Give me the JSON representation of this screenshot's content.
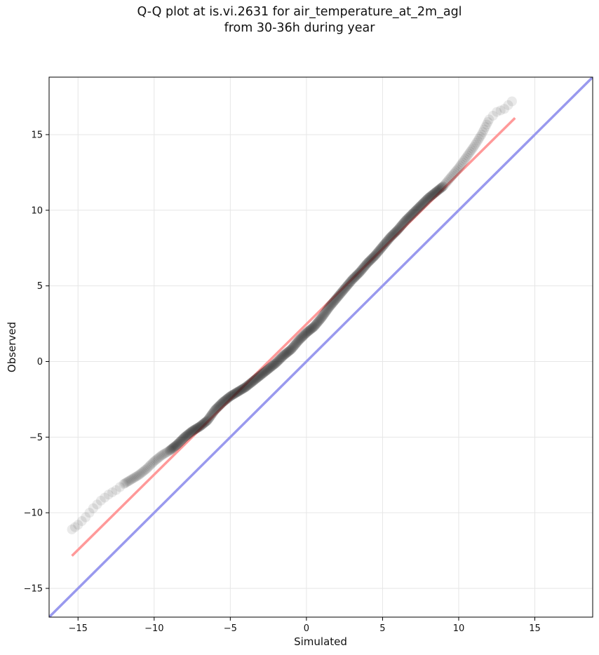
{
  "chart_data": {
    "type": "scatter",
    "title_line1": "Q-Q plot at is.vi.2631 for air_temperature_at_2m_agl",
    "title_line2": "from 30-36h during year",
    "xlabel": "Simulated",
    "ylabel": "Observed",
    "xlim": [
      -16.9,
      18.8
    ],
    "ylim": [
      -16.9,
      18.8
    ],
    "xticks": [
      -15,
      -10,
      -5,
      0,
      5,
      10,
      15
    ],
    "yticks": [
      -15,
      -10,
      -5,
      0,
      5,
      10,
      15
    ],
    "xtick_labels": [
      "−15",
      "−10",
      "−5",
      "0",
      "5",
      "10",
      "15"
    ],
    "ytick_labels": [
      "−15",
      "−10",
      "−5",
      "0",
      "5",
      "10",
      "15"
    ],
    "grid": true,
    "quantile_curve": [
      [
        -15.4,
        -11.1
      ],
      [
        -15.0,
        -10.8
      ],
      [
        -14.5,
        -10.3
      ],
      [
        -14.0,
        -9.7
      ],
      [
        -13.5,
        -9.2
      ],
      [
        -13.0,
        -8.8
      ],
      [
        -12.5,
        -8.5
      ],
      [
        -12.0,
        -8.1
      ],
      [
        -11.5,
        -7.8
      ],
      [
        -11.0,
        -7.5
      ],
      [
        -10.5,
        -7.1
      ],
      [
        -10.0,
        -6.6
      ],
      [
        -9.5,
        -6.2
      ],
      [
        -9.0,
        -5.9
      ],
      [
        -8.5,
        -5.5
      ],
      [
        -8.0,
        -5.0
      ],
      [
        -7.5,
        -4.6
      ],
      [
        -7.0,
        -4.3
      ],
      [
        -6.5,
        -3.9
      ],
      [
        -6.0,
        -3.2
      ],
      [
        -5.5,
        -2.7
      ],
      [
        -5.0,
        -2.3
      ],
      [
        -4.5,
        -2.0
      ],
      [
        -4.0,
        -1.7
      ],
      [
        -3.5,
        -1.3
      ],
      [
        -3.0,
        -0.9
      ],
      [
        -2.5,
        -0.5
      ],
      [
        -2.0,
        -0.1
      ],
      [
        -1.5,
        0.4
      ],
      [
        -1.0,
        0.8
      ],
      [
        -0.5,
        1.4
      ],
      [
        0.0,
        1.9
      ],
      [
        0.5,
        2.3
      ],
      [
        1.0,
        2.9
      ],
      [
        1.5,
        3.6
      ],
      [
        2.0,
        4.2
      ],
      [
        2.5,
        4.8
      ],
      [
        3.0,
        5.4
      ],
      [
        3.5,
        5.9
      ],
      [
        4.0,
        6.5
      ],
      [
        4.5,
        7.0
      ],
      [
        5.0,
        7.6
      ],
      [
        5.5,
        8.2
      ],
      [
        6.0,
        8.7
      ],
      [
        6.5,
        9.3
      ],
      [
        7.0,
        9.8
      ],
      [
        7.5,
        10.3
      ],
      [
        8.0,
        10.8
      ],
      [
        8.5,
        11.2
      ],
      [
        9.0,
        11.6
      ],
      [
        9.5,
        12.2
      ],
      [
        10.0,
        12.8
      ],
      [
        10.5,
        13.5
      ],
      [
        11.0,
        14.2
      ],
      [
        11.5,
        15.0
      ],
      [
        12.0,
        16.0
      ],
      [
        12.5,
        16.5
      ],
      [
        13.0,
        16.7
      ],
      [
        13.5,
        17.2
      ]
    ],
    "fit_line": {
      "x": [
        -15.4,
        13.7
      ],
      "y": [
        -12.85,
        16.1
      ],
      "color": "#ff9999"
    },
    "reference_line": {
      "x": [
        -16.9,
        18.8
      ],
      "y": [
        -16.9,
        18.8
      ],
      "color": "#9999ee"
    },
    "point_color": "#1a1a1a"
  }
}
